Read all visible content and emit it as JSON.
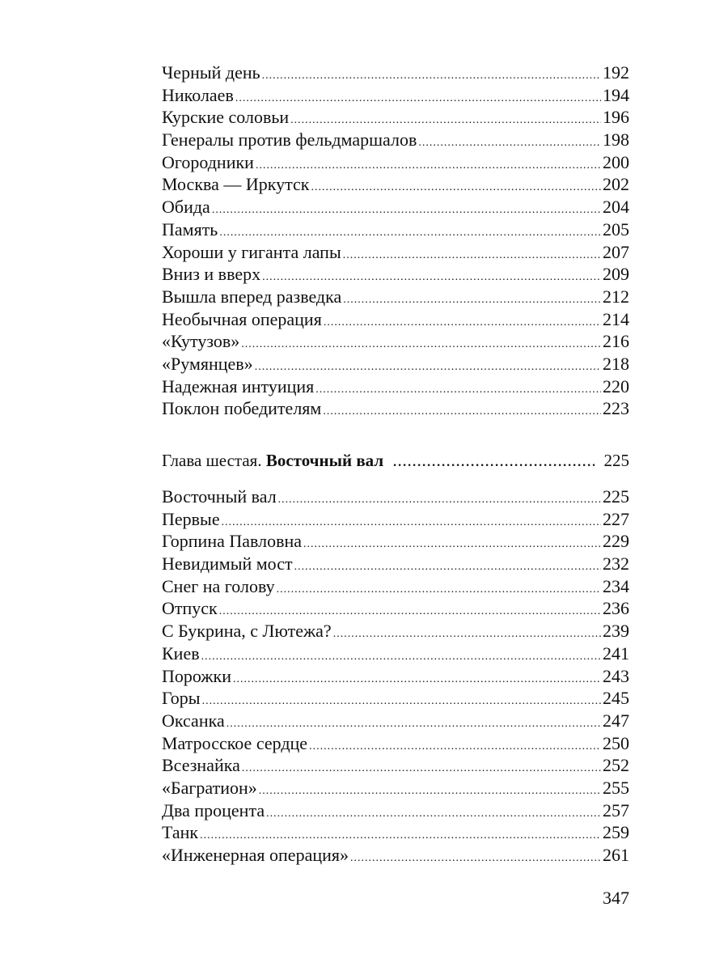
{
  "section1": [
    {
      "title": "Черный день",
      "page": "192"
    },
    {
      "title": "Николаев",
      "page": "194"
    },
    {
      "title": "Курские соловьи",
      "page": "196"
    },
    {
      "title": "Генералы против фельдмаршалов",
      "page": "198"
    },
    {
      "title": "Огородники",
      "page": "200"
    },
    {
      "title": "Москва — Иркутск",
      "page": "202"
    },
    {
      "title": "Обида",
      "page": "204"
    },
    {
      "title": "Память",
      "page": "205"
    },
    {
      "title": "Хороши у гиганта лапы",
      "page": "207"
    },
    {
      "title": "Вниз и вверх",
      "page": "209"
    },
    {
      "title": "Вышла вперед разведка",
      "page": "212"
    },
    {
      "title": "Необычная операция",
      "page": "214"
    },
    {
      "title": "«Кутузов»",
      "page": "216"
    },
    {
      "title": "«Румянцев»",
      "page": "218"
    },
    {
      "title": "Надежная интуиция",
      "page": "220"
    },
    {
      "title": "Поклон победителям",
      "page": "223"
    }
  ],
  "chapter": {
    "prefix": "Глава шестая.",
    "title": "Восточный вал",
    "page": "225"
  },
  "section2": [
    {
      "title": "Восточный вал",
      "page": "225"
    },
    {
      "title": "Первые",
      "page": "227"
    },
    {
      "title": "Горпина Павловна",
      "page": "229"
    },
    {
      "title": "Невидимый мост",
      "page": "232"
    },
    {
      "title": "Снег на голову",
      "page": "234"
    },
    {
      "title": "Отпуск",
      "page": "236"
    },
    {
      "title": "С Букрина, с Лютежа?",
      "page": "239"
    },
    {
      "title": "Киев",
      "page": "241"
    },
    {
      "title": "Порожки",
      "page": "243"
    },
    {
      "title": "Горы",
      "page": "245"
    },
    {
      "title": "Оксанка",
      "page": "247"
    },
    {
      "title": "Матросское сердце",
      "page": "250"
    },
    {
      "title": "Всезнайка",
      "page": "252"
    },
    {
      "title": "«Багратион»",
      "page": "255"
    },
    {
      "title": "Два процента",
      "page": "257"
    },
    {
      "title": "Танк",
      "page": "259"
    },
    {
      "title": "«Инженерная операция»",
      "page": "261"
    }
  ],
  "page_number": "347"
}
